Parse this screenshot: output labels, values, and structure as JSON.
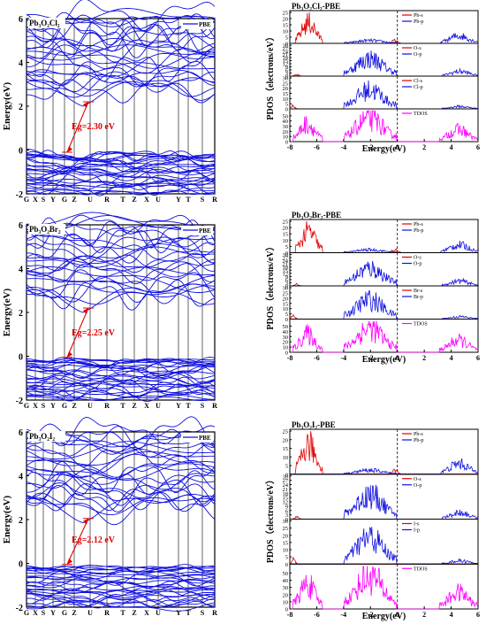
{
  "colors": {
    "band": "#1010e0",
    "red": "#e00000",
    "blue": "#1010e0",
    "magenta": "#ff00ff",
    "axis": "#000000"
  },
  "panels": [
    {
      "title": "Pb₃O₂Cl₂",
      "dos_title": "Pb₃O₂Cl₂-PBE",
      "legend": "PBE",
      "gap_label": "Eg=2.30 eV",
      "halide_s": "Cl-s",
      "halide_p": "Cl-p",
      "halide_ticks": [
        0,
        5,
        10,
        15,
        20,
        25,
        30
      ]
    },
    {
      "title": "Pb₃O₂Br₂",
      "dos_title": "Pb₃O₂Br₂-PBE",
      "legend": "PBE",
      "gap_label": "Eg=2.25 eV",
      "halide_s": "Br-s",
      "halide_p": "Br-p",
      "halide_ticks": [
        0,
        5,
        10,
        15,
        20,
        25,
        30
      ]
    },
    {
      "title": "Pb₃O₂I₂",
      "dos_title": "Pb₃O₂I₂-PBE",
      "legend": "PBE",
      "gap_label": "Eg=2.12 eV",
      "halide_s": "I-s",
      "halide_p": "I-p",
      "halide_ticks": [
        0,
        5,
        10,
        15,
        20,
        25,
        30
      ]
    }
  ],
  "band_axis": {
    "ylabel": "Energy(eV)",
    "yticks": [
      -2,
      0,
      2,
      4,
      6
    ],
    "kpoints": [
      "G",
      "X",
      "S",
      "Y",
      "G",
      "Z",
      "U",
      "R",
      "T",
      "Z",
      "X",
      "U",
      "Y",
      "T",
      "S",
      "R"
    ]
  },
  "dos_axis": {
    "ylabel": "PDOS（electrons/eV）",
    "xlabel": "Energy(eV)",
    "xticks": [
      -8,
      -6,
      -4,
      -2,
      0,
      2,
      4,
      6
    ],
    "pb_labels": [
      "Pb-s",
      "Pb-p"
    ],
    "pb_ticks": [
      0,
      5,
      10,
      15,
      20,
      25
    ],
    "o_labels": [
      "O-s",
      "O-p"
    ],
    "o_ticks": [
      0,
      3,
      6,
      9,
      12,
      15,
      18,
      21,
      24,
      27,
      30
    ],
    "tdos_label": "TDOS",
    "tdos_ticks": [
      0,
      10,
      20,
      30,
      40,
      50
    ]
  },
  "chart_data": [
    {
      "type": "line",
      "title": "Pb₃O₂Cl₂",
      "ylabel": "Energy(eV)",
      "ylim": [
        -2,
        6
      ],
      "band_gap_eV": 2.3,
      "series": [
        {
          "name": "PBE"
        }
      ]
    },
    {
      "type": "line",
      "title": "Pb₃O₂Cl₂-PBE",
      "xlabel": "Energy(eV)",
      "ylabel": "PDOS（electrons/eV）",
      "xlim": [
        -8,
        6
      ],
      "series": [
        {
          "name": "Pb-s"
        },
        {
          "name": "Pb-p"
        },
        {
          "name": "O-s"
        },
        {
          "name": "O-p"
        },
        {
          "name": "Cl-s"
        },
        {
          "name": "Cl-p"
        },
        {
          "name": "TDOS"
        }
      ]
    },
    {
      "type": "line",
      "title": "Pb₃O₂Br₂",
      "ylabel": "Energy(eV)",
      "ylim": [
        -2,
        6
      ],
      "band_gap_eV": 2.25,
      "series": [
        {
          "name": "PBE"
        }
      ]
    },
    {
      "type": "line",
      "title": "Pb₃O₂Br₂-PBE",
      "xlabel": "Energy(eV)",
      "ylabel": "PDOS（electrons/eV）",
      "xlim": [
        -8,
        6
      ],
      "series": [
        {
          "name": "Pb-s"
        },
        {
          "name": "Pb-p"
        },
        {
          "name": "O-s"
        },
        {
          "name": "O-p"
        },
        {
          "name": "Br-s"
        },
        {
          "name": "Br-p"
        },
        {
          "name": "TDOS"
        }
      ]
    },
    {
      "type": "line",
      "title": "Pb₃O₂I₂",
      "ylabel": "Energy(eV)",
      "ylim": [
        -2,
        6
      ],
      "band_gap_eV": 2.12,
      "series": [
        {
          "name": "PBE"
        }
      ]
    },
    {
      "type": "line",
      "title": "Pb₃O₂I₂-PBE",
      "xlabel": "Energy(eV)",
      "ylabel": "PDOS（electrons/eV）",
      "xlim": [
        -8,
        6
      ],
      "series": [
        {
          "name": "Pb-s"
        },
        {
          "name": "Pb-p"
        },
        {
          "name": "O-s"
        },
        {
          "name": "O-p"
        },
        {
          "name": "I-s"
        },
        {
          "name": "I-p"
        },
        {
          "name": "TDOS"
        }
      ]
    }
  ]
}
